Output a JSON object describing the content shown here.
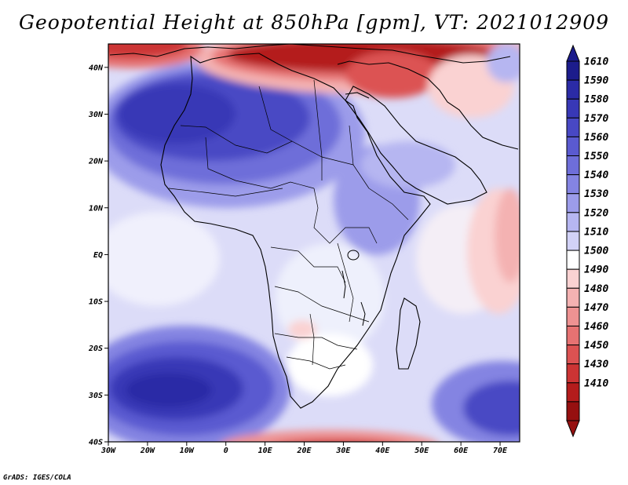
{
  "title": "Geopotential Height at 850hPa [gpm], VT: 2021012909",
  "footer": "GrADS: IGES/COLA",
  "map": {
    "variable": "Geopotential Height at 850hPa",
    "units": "gpm",
    "valid_time": "2021012909",
    "lon_range": [
      -30,
      75
    ],
    "lat_range": [
      -40,
      45
    ],
    "lat_labels": [
      "40N",
      "30N",
      "20N",
      "10N",
      "EQ",
      "10S",
      "20S",
      "30S",
      "40S"
    ],
    "lon_labels": [
      "30W",
      "20W",
      "10W",
      "0",
      "10E",
      "20E",
      "30E",
      "40E",
      "50E",
      "60E",
      "70E"
    ],
    "lat_values": [
      40,
      30,
      20,
      10,
      0,
      -10,
      -20,
      -30,
      -40
    ],
    "lon_values": [
      -30,
      -20,
      -10,
      0,
      10,
      20,
      30,
      40,
      50,
      60,
      70
    ]
  },
  "colorbar": {
    "labels": [
      "1610",
      "1590",
      "1580",
      "1570",
      "1560",
      "1550",
      "1540",
      "1530",
      "1520",
      "1510",
      "1500",
      "1490",
      "1480",
      "1470",
      "1460",
      "1450",
      "1430",
      "1410"
    ],
    "colors": [
      "#1c1c8c",
      "#2b2ba6",
      "#3838b6",
      "#4848c4",
      "#5a5ad0",
      "#6e6ed9",
      "#8484e2",
      "#9c9cea",
      "#b6b6f1",
      "#d2d2f7",
      "#ffffff",
      "#fad2d2",
      "#f4b2b2",
      "#ee9292",
      "#e67272",
      "#dc5252",
      "#cc3434",
      "#b41c1c",
      "#961010"
    ]
  }
}
